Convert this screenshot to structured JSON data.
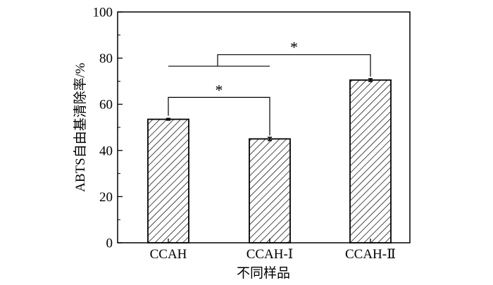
{
  "chart_data": {
    "type": "bar",
    "categories": [
      "CCAH",
      "CCAH-Ⅰ",
      "CCAH-Ⅱ"
    ],
    "values": [
      53.5,
      45.0,
      70.5
    ],
    "errors": [
      0.4,
      0.7,
      0.6
    ],
    "xlabel": "不同样品",
    "ylabel": "ABTS自由基清除率/%",
    "ylim": [
      0,
      100
    ],
    "yticks": [
      0,
      20,
      40,
      60,
      80,
      100
    ],
    "bar_fill": "hatched",
    "grid": false,
    "legend": "none",
    "significance": [
      {
        "from": "CCAH",
        "to": "CCAH-Ⅰ",
        "label": "*"
      },
      {
        "from": "CCAH/CCAH-Ⅰ",
        "to": "CCAH-Ⅱ",
        "label": "*"
      }
    ]
  },
  "colors": {
    "axis": "#000000",
    "bar_edge": "#000000",
    "hatch": "#000000",
    "background": "#ffffff"
  }
}
